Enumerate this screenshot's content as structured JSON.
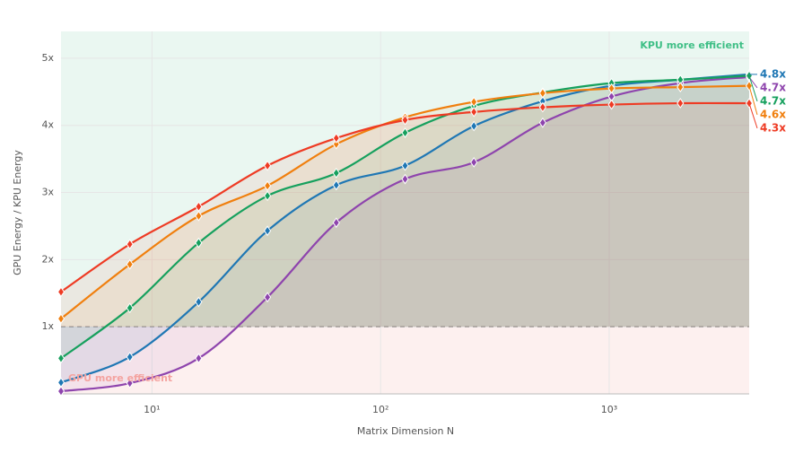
{
  "chart_data": {
    "type": "line",
    "x_label": "Matrix Dimension N",
    "y_label": "GPU Energy / KPU Energy",
    "x": [
      4,
      8,
      16,
      32,
      64,
      128,
      256,
      512,
      1024,
      2048,
      4096
    ],
    "xlog": true,
    "xlim": [
      4,
      4096
    ],
    "xticks": [
      {
        "value": 10,
        "label": "10¹"
      },
      {
        "value": 100,
        "label": "10²"
      },
      {
        "value": 1000,
        "label": "10³"
      }
    ],
    "ylim": [
      0,
      5.4
    ],
    "yticks": [
      {
        "value": 1,
        "label": "1x"
      },
      {
        "value": 2,
        "label": "2x"
      },
      {
        "value": 3,
        "label": "3x"
      },
      {
        "value": 4,
        "label": "4x"
      },
      {
        "value": 5,
        "label": "5x"
      }
    ],
    "grid": true,
    "threshold": 1,
    "annotations": [
      "KPU more efficient",
      "GPU more efficient"
    ],
    "series": [
      {
        "color": "#1f77b4",
        "values": [
          0.17,
          0.55,
          1.37,
          2.43,
          3.11,
          3.4,
          3.99,
          4.36,
          4.59,
          4.68,
          4.76
        ],
        "value_labels": [
          null,
          null,
          null,
          null,
          null,
          null,
          null,
          null,
          null,
          null,
          "4.8x"
        ]
      },
      {
        "color": "#8e44ad",
        "values": [
          0.04,
          0.16,
          0.53,
          1.44,
          2.55,
          3.2,
          3.45,
          4.04,
          4.43,
          4.63,
          4.72
        ],
        "value_labels": [
          null,
          null,
          null,
          null,
          null,
          null,
          null,
          null,
          null,
          null,
          "4.7x"
        ]
      },
      {
        "color": "#16a05d",
        "values": [
          0.53,
          1.28,
          2.25,
          2.95,
          3.29,
          3.89,
          4.29,
          4.49,
          4.63,
          4.68,
          4.74
        ],
        "value_labels": [
          null,
          null,
          null,
          null,
          null,
          null,
          null,
          null,
          null,
          null,
          "4.7x"
        ]
      },
      {
        "color": "#f07f0e",
        "values": [
          1.12,
          1.93,
          2.65,
          3.1,
          3.72,
          4.12,
          4.35,
          4.48,
          4.55,
          4.57,
          4.59
        ],
        "value_labels": [
          null,
          null,
          null,
          null,
          null,
          null,
          null,
          null,
          null,
          null,
          "4.6x"
        ]
      },
      {
        "color": "#ee3b24",
        "values": [
          1.52,
          2.23,
          2.79,
          3.4,
          3.81,
          4.08,
          4.2,
          4.27,
          4.31,
          4.33,
          4.33
        ],
        "value_labels": [
          null,
          null,
          null,
          null,
          null,
          null,
          null,
          null,
          null,
          null,
          "4.3x"
        ]
      }
    ]
  }
}
